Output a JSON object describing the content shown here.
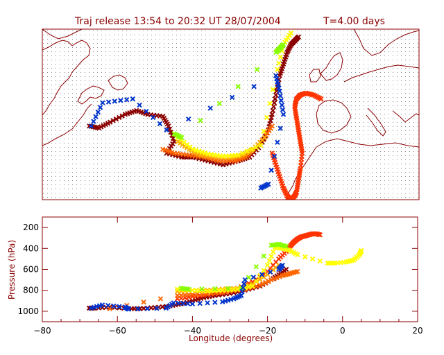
{
  "title": "Traj release 13:54 to 20:32 UT 28/07/2004",
  "t_label": "T=4.00 days",
  "colors": {
    "frame": "#8b0000",
    "coast": "#8b0000",
    "dots": "#777777",
    "text": "#8b0000",
    "series": [
      "#8b0000",
      "#ff3300",
      "#ff6600",
      "#ffaa00",
      "#ffff00",
      "#88ff00",
      "#0033cc"
    ]
  },
  "chart_data": [
    {
      "type": "map",
      "title": "Traj release 13:54 to 20:32 UT 28/07/2004",
      "annotation": "T=4.00 days",
      "xlim": [
        -80,
        20
      ],
      "series": [
        {
          "color": "#8b0000",
          "lon": [
            -67.5,
            -65,
            -62,
            -58,
            -55,
            -52,
            -48,
            -46.5,
            -45,
            -47,
            -43,
            -40,
            -36,
            -32,
            -28,
            -25,
            -22,
            -20,
            -19,
            -18,
            -17,
            -16,
            -15,
            -14,
            -13,
            -12
          ],
          "lat": [
            47,
            46.5,
            48,
            50,
            51,
            50,
            49.5,
            47,
            43,
            40,
            39,
            39,
            38,
            37,
            38,
            39,
            42,
            46,
            50,
            55,
            60,
            63,
            66,
            68,
            69,
            70
          ]
        },
        {
          "color": "#ff3300",
          "lon": [
            -19,
            -18,
            -17,
            -16,
            -15,
            -14,
            -13,
            -12.5,
            -12,
            -11.5,
            -11,
            -11.5,
            -12,
            -12.5,
            -13,
            -12.5,
            -11.5,
            -10,
            -8,
            -6
          ],
          "lat": [
            40,
            37,
            34,
            31,
            29,
            28,
            29,
            30,
            33,
            36,
            40,
            43,
            46,
            49,
            52,
            54,
            55,
            55.5,
            55,
            54
          ]
        },
        {
          "color": "#ff6600",
          "lon": [
            -48,
            -45,
            -41,
            -37,
            -33,
            -29,
            -26,
            -24,
            -21,
            -19
          ],
          "lat": [
            41,
            40,
            39.5,
            39,
            38,
            38,
            39,
            41,
            44,
            47
          ]
        },
        {
          "color": "#ffaa00",
          "lon": [
            -44,
            -41,
            -38,
            -34,
            -30,
            -27,
            -24,
            -21
          ],
          "lat": [
            43,
            41,
            39.5,
            39,
            38.8,
            39.5,
            41,
            44
          ]
        },
        {
          "color": "#ffff00",
          "lon": [
            -44,
            -40,
            -36,
            -32,
            -28,
            -22,
            -18,
            -16,
            -14
          ],
          "lat": [
            44,
            41,
            39.8,
            39.2,
            39.5,
            42,
            60,
            68,
            71
          ]
        },
        {
          "color": "#88ff00",
          "lon": [
            -45,
            -43,
            -18,
            -17,
            -16
          ],
          "lat": [
            45,
            44,
            66,
            67,
            68
          ]
        },
        {
          "color": "#0033cc",
          "lon": [
            -67,
            -64,
            -56,
            -47,
            -18,
            -17,
            -16,
            -20,
            -22
          ],
          "lat": [
            47,
            53,
            54,
            46,
            60,
            56,
            50,
            32,
            31
          ]
        }
      ]
    },
    {
      "type": "scatter",
      "xlabel": "Longitude  (degrees)",
      "ylabel": "Pressure  (hPa)",
      "xlim": [
        -80,
        20
      ],
      "ylim": [
        1100,
        100
      ],
      "xticks": [
        "−80",
        "−60",
        "−40",
        "−20",
        "0",
        "20"
      ],
      "yticks": [
        "200",
        "400",
        "600",
        "800",
        "1000"
      ],
      "series": [
        {
          "color": "#8b0000",
          "x": [
            -67.5,
            -66,
            -62,
            -57,
            -54,
            -50,
            -46,
            -43,
            -40,
            -37,
            -34,
            -30,
            -26,
            -22,
            -19,
            -17,
            -15
          ],
          "y": [
            970,
            970,
            960,
            975,
            975,
            965,
            950,
            930,
            900,
            870,
            850,
            830,
            800,
            760,
            700,
            650,
            600
          ]
        },
        {
          "color": "#ff3300",
          "x": [
            -44,
            -40,
            -36,
            -32,
            -28,
            -24,
            -20,
            -17,
            -15,
            -14,
            -13,
            -12,
            -11,
            -10,
            -9,
            -8,
            -7,
            -6
          ],
          "y": [
            880,
            860,
            840,
            820,
            780,
            720,
            620,
            500,
            430,
            380,
            340,
            310,
            290,
            280,
            270,
            260,
            260,
            270
          ]
        },
        {
          "color": "#ff6600",
          "x": [
            -62,
            -44,
            -40,
            -35,
            -30,
            -26,
            -22,
            -19,
            -16,
            -14,
            -12
          ],
          "y": [
            975,
            850,
            840,
            830,
            810,
            790,
            750,
            700,
            660,
            640,
            620
          ]
        },
        {
          "color": "#ffaa00",
          "x": [
            -44,
            -40,
            -36,
            -32,
            -28,
            -24,
            -20,
            -17
          ],
          "y": [
            810,
            800,
            800,
            790,
            780,
            740,
            650,
            560
          ]
        },
        {
          "color": "#ffff00",
          "x": [
            -44,
            -40,
            -36,
            -32,
            -28,
            -24,
            -20,
            -18,
            -16,
            -14,
            -12,
            -4,
            -2,
            1,
            3,
            4.5,
            5
          ],
          "y": [
            790,
            800,
            810,
            800,
            790,
            760,
            560,
            390,
            400,
            420,
            460,
            540,
            540,
            530,
            510,
            460,
            420
          ]
        },
        {
          "color": "#88ff00",
          "x": [
            -43,
            -41,
            -27,
            -19,
            -17,
            -15
          ],
          "y": [
            780,
            790,
            780,
            370,
            360,
            380
          ]
        },
        {
          "color": "#0033cc",
          "x": [
            -67,
            -64,
            -58,
            -57,
            -47,
            -45,
            -40,
            -32,
            -29,
            -27,
            -26,
            -17,
            -16
          ],
          "y": [
            970,
            940,
            960,
            980,
            970,
            920,
            930,
            910,
            880,
            850,
            700,
            600,
            560
          ]
        }
      ]
    }
  ]
}
